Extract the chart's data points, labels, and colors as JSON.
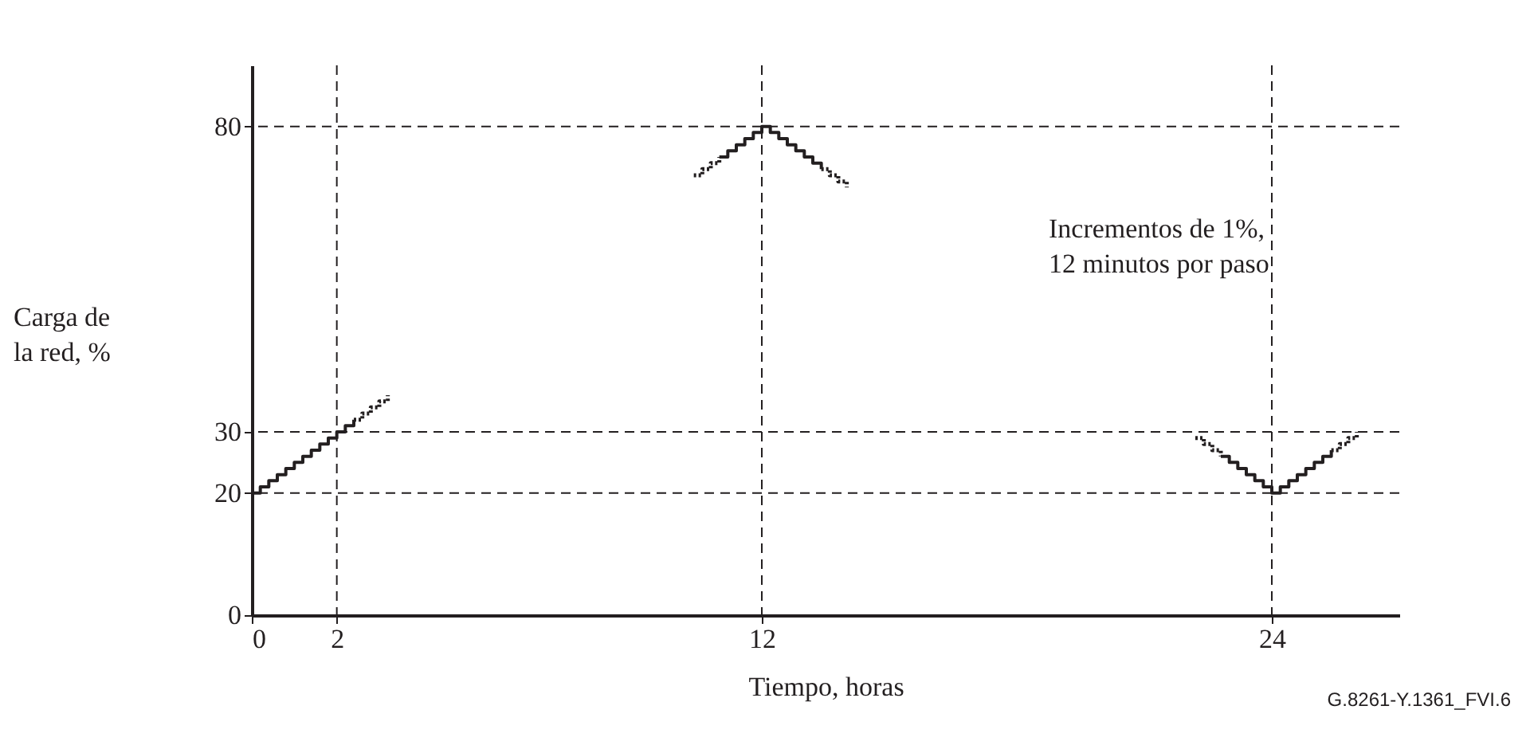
{
  "chart_data": {
    "type": "step",
    "ylabel": "Carga de la red, %",
    "xlabel": "Tiempo, horas",
    "xlim": [
      0,
      27
    ],
    "xticks": [
      0,
      2,
      12,
      24
    ],
    "ylim": [
      0,
      90
    ],
    "yticks": [
      0,
      20,
      30,
      80
    ],
    "grid": false,
    "marker": "none",
    "annotations": [
      "Incrementos de 1%, 12 minutos por paso",
      "G.8261-Y.1361_FVI.6"
    ],
    "series": [
      {
        "color": "#231f20",
        "line_style": "solid",
        "x": [
          0,
          0.2,
          0.4,
          0.6,
          0.8,
          1.0,
          1.2,
          1.4,
          1.6,
          1.8,
          2.0,
          2.2,
          2.4
        ],
        "values": [
          20,
          21,
          22,
          23,
          24,
          25,
          26,
          27,
          28,
          29,
          30,
          31,
          32
        ]
      },
      {
        "color": "#231f20",
        "line_style": "dotted",
        "x": [
          2.4,
          2.6,
          2.8,
          3.0,
          3.2
        ],
        "values": [
          32,
          33,
          34,
          35,
          36
        ]
      },
      {
        "color": "#231f20",
        "line_style": "dotted",
        "x": [
          10.4,
          10.6,
          10.8,
          11.0
        ],
        "values": [
          72,
          73,
          74,
          75
        ]
      },
      {
        "color": "#231f20",
        "line_style": "solid",
        "x": [
          11.0,
          11.2,
          11.4,
          11.6,
          11.8,
          12.0,
          12.2,
          12.4,
          12.6,
          12.8,
          13.0,
          13.2,
          13.4
        ],
        "values": [
          75,
          76,
          77,
          78,
          79,
          80,
          79,
          78,
          77,
          76,
          75,
          74,
          73
        ]
      },
      {
        "color": "#231f20",
        "line_style": "dotted",
        "x": [
          13.4,
          13.6,
          13.8,
          14.0
        ],
        "values": [
          73,
          72,
          71,
          70
        ]
      },
      {
        "color": "#231f20",
        "line_style": "dotted",
        "x": [
          22.2,
          22.4,
          22.6,
          22.8
        ],
        "values": [
          29,
          28,
          27,
          26
        ]
      },
      {
        "color": "#231f20",
        "line_style": "solid",
        "x": [
          22.8,
          23.0,
          23.2,
          23.4,
          23.6,
          23.8,
          24.0,
          24.2,
          24.4,
          24.6,
          24.8,
          25.0,
          25.2,
          25.4
        ],
        "values": [
          26,
          25,
          24,
          23,
          22,
          21,
          20,
          21,
          22,
          23,
          24,
          25,
          26,
          27
        ]
      },
      {
        "color": "#231f20",
        "line_style": "dotted",
        "x": [
          25.4,
          25.6,
          25.8,
          26.0
        ],
        "values": [
          27,
          28,
          29,
          30
        ]
      }
    ],
    "ref_lines": [
      {
        "axis": "y",
        "value": 20,
        "color": "#231f20",
        "line_style": "dashed"
      },
      {
        "axis": "y",
        "value": 30,
        "color": "#231f20",
        "line_style": "dashed"
      },
      {
        "axis": "y",
        "value": 80,
        "color": "#231f20",
        "line_style": "dashed"
      },
      {
        "axis": "x",
        "value": 2,
        "color": "#231f20",
        "line_style": "dashed"
      },
      {
        "axis": "x",
        "value": 12,
        "color": "#231f20",
        "line_style": "dashed"
      },
      {
        "axis": "x",
        "value": 24,
        "color": "#231f20",
        "line_style": "dashed"
      }
    ]
  }
}
